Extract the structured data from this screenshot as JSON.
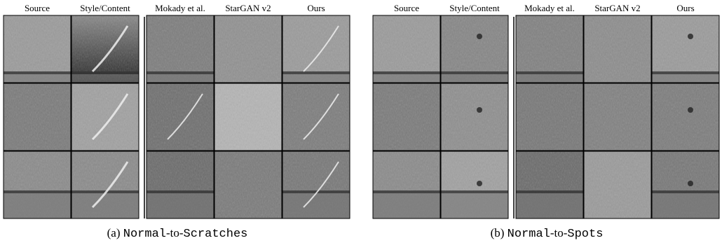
{
  "panels": [
    {
      "columns": [
        "Source",
        "Style/Content",
        "Mokady et al.",
        "StarGAN v2",
        "Ours"
      ],
      "caption": {
        "label": "(a)",
        "parts": [
          "Normal",
          "-to-",
          "Scratches"
        ]
      }
    },
    {
      "columns": [
        "Source",
        "Style/Content",
        "Mokady et al.",
        "StarGAN v2",
        "Ours"
      ],
      "caption": {
        "label": "(b)",
        "parts": [
          "Normal",
          "-to-",
          "Spots"
        ]
      }
    }
  ]
}
